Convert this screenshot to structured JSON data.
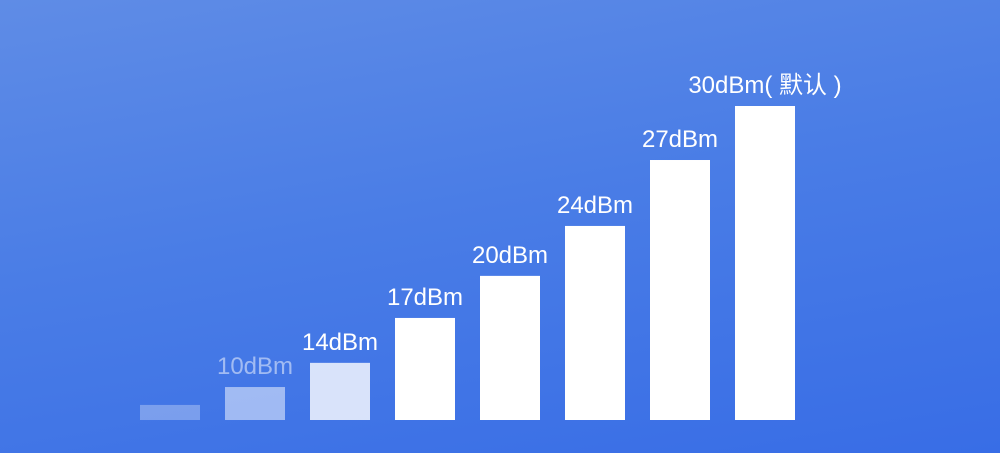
{
  "colors": {
    "background_top": "#5f8ce6",
    "background_bottom": "#386de6",
    "bar": "#ffffff"
  },
  "chart_data": {
    "type": "bar",
    "categories": [
      "",
      "10dBm",
      "14dBm",
      "17dBm",
      "20dBm",
      "24dBm",
      "27dBm",
      "30dBm( 默认 )"
    ],
    "values_relative_percent": [
      4.8,
      10.5,
      18.2,
      32.5,
      45.9,
      61.8,
      82.8,
      100
    ],
    "bar_opacity": [
      0.3,
      0.5,
      0.8,
      1,
      1,
      1,
      1,
      1
    ],
    "label_opacity": [
      0,
      0.5,
      1,
      1,
      1,
      1,
      1,
      1
    ],
    "title": "",
    "xlabel": "",
    "ylabel": "",
    "grid": false,
    "legend": "none",
    "axes_visible": false
  }
}
